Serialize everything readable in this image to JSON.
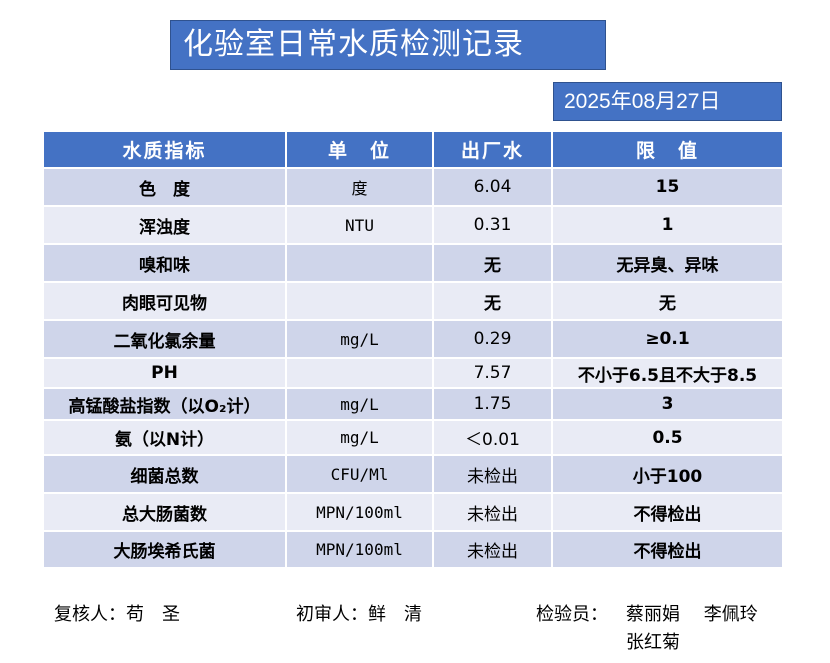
{
  "title": "化验室日常水质检测记录",
  "date": "2025年08月27日",
  "table": {
    "headers": [
      "水质指标",
      "单　位",
      "出厂水",
      "限　值"
    ],
    "rows": [
      {
        "name": "色　度",
        "unit": "度",
        "value": "6.04",
        "limit": "15"
      },
      {
        "name": "浑浊度",
        "unit": "NTU",
        "value": "0.31",
        "limit": "1"
      },
      {
        "name": "嗅和味",
        "unit": "",
        "value": "无",
        "limit": "无异臭、异味"
      },
      {
        "name": "肉眼可见物",
        "unit": "",
        "value": "无",
        "limit": "无"
      },
      {
        "name": "二氧化氯余量",
        "unit": "mg/L",
        "value": "0.29",
        "limit": "≥0.1"
      },
      {
        "name": "PH",
        "unit": "",
        "value": "7.57",
        "limit": "不小于6.5且不大于8.5"
      },
      {
        "name": "高锰酸盐指数（以O₂计）",
        "unit": "mg/L",
        "value": "1.75",
        "limit": "3"
      },
      {
        "name": "氨（以N计）",
        "unit": "mg/L",
        "value": "＜0.01",
        "limit": "0.5"
      },
      {
        "name": "细菌总数",
        "unit": "CFU/Ml",
        "value": "未检出",
        "limit": "小于100"
      },
      {
        "name": "总大肠菌数",
        "unit": "MPN/100ml",
        "value": "未检出",
        "limit": "不得检出"
      },
      {
        "name": "大肠埃希氏菌",
        "unit": "MPN/100ml",
        "value": "未检出",
        "limit": "不得检出"
      }
    ]
  },
  "footer": {
    "reviewer": "复核人：苟　圣",
    "first_reviewer": "初审人：鲜　清",
    "inspector_label": "检验员：",
    "inspectors_line1": "蔡丽娟　 李佩玲",
    "inspectors_line2": "张红菊"
  }
}
